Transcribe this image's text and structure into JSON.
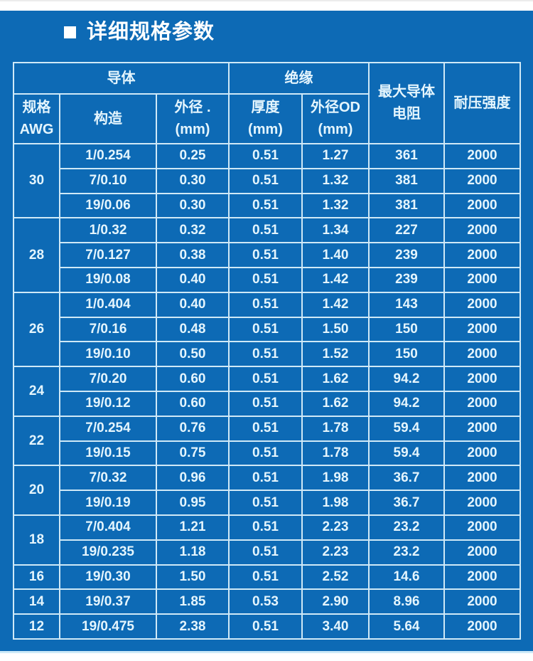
{
  "page": {
    "title": "详细规格参数"
  },
  "colors": {
    "background_blue": "#0d6ab5",
    "grid_line": "#cfe9f7",
    "cell_text": "#e4f5fd",
    "title_text": "#ffffff",
    "bottom_line": "#cdeaf8",
    "page_background": "#ffffff"
  },
  "table": {
    "header": {
      "conductor_group": "导体",
      "insulation_group": "绝缘",
      "awg_line1": "规格",
      "awg_line2": "AWG",
      "construction": "构造",
      "od_line1": "外径 .",
      "od_line2": "(mm)",
      "thickness_line1": "厚度",
      "thickness_line2": "(mm)",
      "od_outer_line1": "外径OD",
      "od_outer_line2": "(mm)",
      "resistance_line1": "最大导体",
      "resistance_line2": "电阻",
      "voltage": "耐压强度"
    },
    "groups": [
      {
        "awg": "30",
        "rows": [
          [
            "1/0.254",
            "0.25",
            "0.51",
            "1.27",
            "361",
            "2000"
          ],
          [
            "7/0.10",
            "0.30",
            "0.51",
            "1.32",
            "381",
            "2000"
          ],
          [
            "19/0.06",
            "0.30",
            "0.51",
            "1.32",
            "381",
            "2000"
          ]
        ]
      },
      {
        "awg": "28",
        "rows": [
          [
            "1/0.32",
            "0.32",
            "0.51",
            "1.34",
            "227",
            "2000"
          ],
          [
            "7/0.127",
            "0.38",
            "0.51",
            "1.40",
            "239",
            "2000"
          ],
          [
            "19/0.08",
            "0.40",
            "0.51",
            "1.42",
            "239",
            "2000"
          ]
        ]
      },
      {
        "awg": "26",
        "rows": [
          [
            "1/0.404",
            "0.40",
            "0.51",
            "1.42",
            "143",
            "2000"
          ],
          [
            "7/0.16",
            "0.48",
            "0.51",
            "1.50",
            "150",
            "2000"
          ],
          [
            "19/0.10",
            "0.50",
            "0.51",
            "1.52",
            "150",
            "2000"
          ]
        ]
      },
      {
        "awg": "24",
        "rows": [
          [
            "7/0.20",
            "0.60",
            "0.51",
            "1.62",
            "94.2",
            "2000"
          ],
          [
            "19/0.12",
            "0.60",
            "0.51",
            "1.62",
            "94.2",
            "2000"
          ]
        ]
      },
      {
        "awg": "22",
        "rows": [
          [
            "7/0.254",
            "0.76",
            "0.51",
            "1.78",
            "59.4",
            "2000"
          ],
          [
            "19/0.15",
            "0.75",
            "0.51",
            "1.78",
            "59.4",
            "2000"
          ]
        ]
      },
      {
        "awg": "20",
        "rows": [
          [
            "7/0.32",
            "0.96",
            "0.51",
            "1.98",
            "36.7",
            "2000"
          ],
          [
            "19/0.19",
            "0.95",
            "0.51",
            "1.98",
            "36.7",
            "2000"
          ]
        ]
      },
      {
        "awg": "18",
        "rows": [
          [
            "7/0.404",
            "1.21",
            "0.51",
            "2.23",
            "23.2",
            "2000"
          ],
          [
            "19/0.235",
            "1.18",
            "0.51",
            "2.23",
            "23.2",
            "2000"
          ]
        ]
      },
      {
        "awg": "16",
        "rows": [
          [
            "19/0.30",
            "1.50",
            "0.51",
            "2.52",
            "14.6",
            "2000"
          ]
        ]
      },
      {
        "awg": "14",
        "rows": [
          [
            "19/0.37",
            "1.85",
            "0.53",
            "2.90",
            "8.96",
            "2000"
          ]
        ]
      },
      {
        "awg": "12",
        "rows": [
          [
            "19/0.475",
            "2.38",
            "0.51",
            "3.40",
            "5.64",
            "2000"
          ]
        ]
      }
    ]
  }
}
